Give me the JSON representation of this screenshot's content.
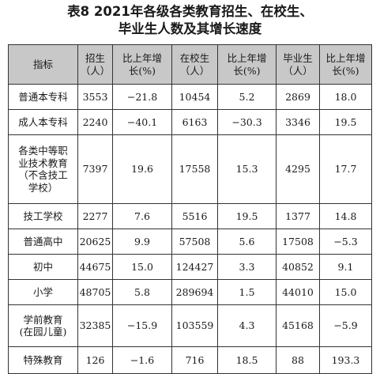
{
  "title": {
    "line1": "表8  2021年各级各类教育招生、在校生、",
    "line2": "毕业生人数及其增长速度"
  },
  "headers": [
    [
      "指标"
    ],
    [
      "招生",
      "（人）"
    ],
    [
      "比上年增",
      "长(%)"
    ],
    [
      "在校生",
      "（人）"
    ],
    [
      "比上年增",
      "长(%)"
    ],
    [
      "毕业生",
      "（人）"
    ],
    [
      "比上年增",
      "长(%)"
    ]
  ],
  "rows": [
    {
      "name": [
        "普通本专科"
      ],
      "values": [
        "3553",
        "−21.8",
        "10454",
        "5.2",
        "2869",
        "18.0"
      ]
    },
    {
      "name": [
        "成人本专科"
      ],
      "values": [
        "2240",
        "−40.1",
        "6163",
        "−30.3",
        "3346",
        "19.5"
      ]
    },
    {
      "name": [
        "各类中等职",
        "业技术教育",
        "（不含技工",
        "学校）"
      ],
      "values": [
        "7397",
        "19.6",
        "17558",
        "15.3",
        "4295",
        "17.7"
      ]
    },
    {
      "name": [
        "技工学校"
      ],
      "values": [
        "2277",
        "7.6",
        "5516",
        "19.5",
        "1377",
        "14.8"
      ]
    },
    {
      "name": [
        "普通高中"
      ],
      "values": [
        "20625",
        "9.9",
        "57508",
        "5.6",
        "17508",
        "−5.3"
      ]
    },
    {
      "name": [
        "初中"
      ],
      "values": [
        "44675",
        "15.0",
        "124427",
        "3.3",
        "40852",
        "9.1"
      ]
    },
    {
      "name": [
        "小学"
      ],
      "values": [
        "48705",
        "5.8",
        "289694",
        "1.5",
        "44010",
        "15.0"
      ]
    },
    {
      "name": [
        "学前教育",
        "(在园儿童)"
      ],
      "values": [
        "32385",
        "−15.9",
        "103559",
        "4.3",
        "45168",
        "−5.9"
      ]
    },
    {
      "name": [
        "特殊教育"
      ],
      "values": [
        "126",
        "−1.6",
        "716",
        "18.5",
        "88",
        "193.3"
      ]
    }
  ]
}
